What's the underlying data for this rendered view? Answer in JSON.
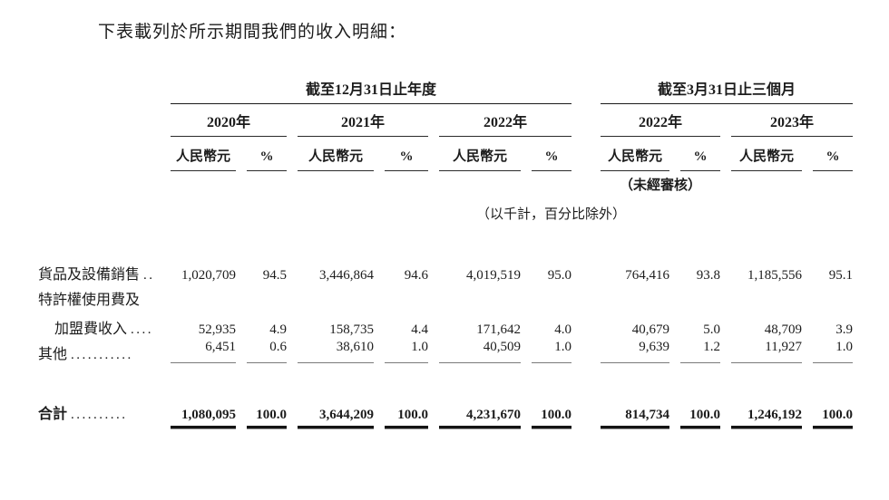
{
  "page": {
    "intro": "下表載列於所示期間我們的收入明細："
  },
  "table": {
    "group_headers": [
      {
        "label": "截至12月31日止年度"
      },
      {
        "label": "截至3月31日止三個月"
      }
    ],
    "years": [
      "2020年",
      "2021年",
      "2022年",
      "2022年",
      "2023年"
    ],
    "subheaders": {
      "currency": "人民幣元",
      "percent": "%"
    },
    "notes": {
      "unaudited": "（未經審核）",
      "units": "（以千計，百分比除外）"
    },
    "rows": [
      {
        "label": "貨品及設備銷售",
        "leader": "..",
        "values": [
          "1,020,709",
          "94.5",
          "3,446,864",
          "94.6",
          "4,019,519",
          "95.0",
          "764,416",
          "93.8",
          "1,185,556",
          "95.1"
        ]
      },
      {
        "label": "特許權使用費及",
        "leader": "",
        "values": []
      },
      {
        "label": "加盟費收入",
        "leader": "....",
        "values": [
          "52,935",
          "4.9",
          "158,735",
          "4.4",
          "171,642",
          "4.0",
          "40,679",
          "5.0",
          "48,709",
          "3.9"
        ]
      },
      {
        "label": "其他",
        "leader": "...........",
        "values": [
          "6,451",
          "0.6",
          "38,610",
          "1.0",
          "40,509",
          "1.0",
          "9,639",
          "1.2",
          "11,927",
          "1.0"
        ]
      }
    ],
    "total": {
      "label": "合計",
      "leader": "..........",
      "values": [
        "1,080,095",
        "100.0",
        "3,644,209",
        "100.0",
        "4,231,670",
        "100.0",
        "814,734",
        "100.0",
        "1,246,192",
        "100.0"
      ]
    }
  }
}
